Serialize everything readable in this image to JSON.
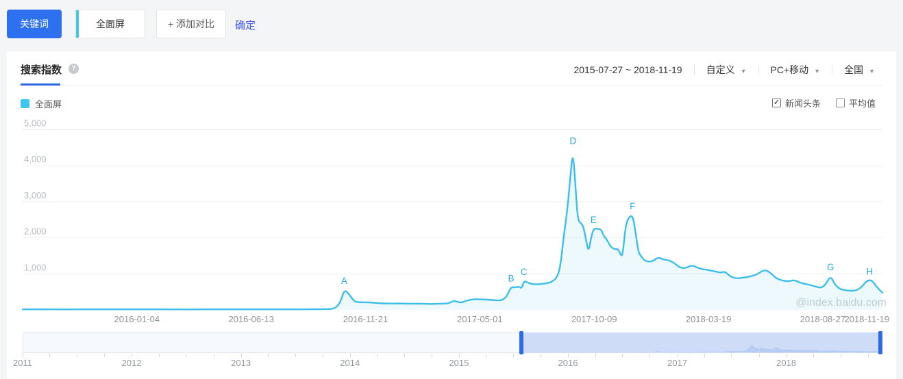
{
  "toolbar": {
    "keyword_label": "关键词",
    "keyword_value": "全面屏",
    "add_compare_label": "+ 添加对比",
    "confirm_label": "确定"
  },
  "panel": {
    "tab_title": "搜索指数",
    "date_range": "2015-07-27 ~ 2018-11-19",
    "range_mode": "自定义",
    "platform": "PC+移动",
    "region": "全国"
  },
  "legend": {
    "series_label": "全面屏",
    "series_color": "#3EC7F0",
    "news_toggle": "新闻头条",
    "news_checked": true,
    "average_toggle": "平均值",
    "average_checked": false
  },
  "icons": {
    "caret": "▼",
    "help": "?",
    "check": "✓"
  },
  "watermark": "@index.baidu.com",
  "colors": {
    "primary_blue": "#2D71F0",
    "accent_blue": "#2E6BE5",
    "cyan": "#3EC7F0",
    "line": "#3CBEEC",
    "marker": "#2EA8E0",
    "slider_selection": "#CEDCF8",
    "slider_mini": "#B7CCF2"
  },
  "chart_data": {
    "type": "area",
    "title": "搜索指数",
    "series_name": "全面屏",
    "x_range": [
      "2015-07-27",
      "2018-11-19"
    ],
    "ylim": [
      0,
      5000
    ],
    "grid": true,
    "y_ticks": [
      {
        "v": 1000,
        "label": "1,000"
      },
      {
        "v": 2000,
        "label": "2,000"
      },
      {
        "v": 3000,
        "label": "3,000"
      },
      {
        "v": 4000,
        "label": "4,000"
      },
      {
        "v": 5000,
        "label": "5,000"
      }
    ],
    "x_ticks": [
      "2016-01-04",
      "2016-06-13",
      "2016-11-21",
      "2017-05-01",
      "2017-10-09",
      "2018-03-19",
      "2018-08-27",
      "2018-11-19"
    ],
    "markers": [
      {
        "label": "A",
        "date": "2016-10-22",
        "value": 570
      },
      {
        "label": "B",
        "date": "2017-06-14",
        "value": 640
      },
      {
        "label": "C",
        "date": "2017-07-02",
        "value": 815
      },
      {
        "label": "D",
        "date": "2017-09-09",
        "value": 4450
      },
      {
        "label": "E",
        "date": "2017-10-08",
        "value": 2260
      },
      {
        "label": "F",
        "date": "2017-12-02",
        "value": 2640
      },
      {
        "label": "G",
        "date": "2018-09-07",
        "value": 950
      },
      {
        "label": "H",
        "date": "2018-11-01",
        "value": 830
      }
    ],
    "points": [
      [
        "2015-07-27",
        15
      ],
      [
        "2015-08-24",
        18
      ],
      [
        "2015-09-21",
        14
      ],
      [
        "2015-10-19",
        17
      ],
      [
        "2015-11-16",
        15
      ],
      [
        "2015-12-14",
        18
      ],
      [
        "2016-01-04",
        15
      ],
      [
        "2016-02-01",
        17
      ],
      [
        "2016-02-29",
        14
      ],
      [
        "2016-03-28",
        16
      ],
      [
        "2016-04-25",
        15
      ],
      [
        "2016-05-23",
        17
      ],
      [
        "2016-06-13",
        15
      ],
      [
        "2016-07-11",
        16
      ],
      [
        "2016-08-08",
        15
      ],
      [
        "2016-09-05",
        17
      ],
      [
        "2016-09-26",
        20
      ],
      [
        "2016-10-08",
        30
      ],
      [
        "2016-10-16",
        180
      ],
      [
        "2016-10-22",
        570
      ],
      [
        "2016-10-29",
        430
      ],
      [
        "2016-11-05",
        230
      ],
      [
        "2016-11-13",
        210
      ],
      [
        "2016-11-21",
        215
      ],
      [
        "2016-12-01",
        200
      ],
      [
        "2016-12-12",
        185
      ],
      [
        "2016-12-26",
        175
      ],
      [
        "2017-01-09",
        180
      ],
      [
        "2017-01-22",
        170
      ],
      [
        "2017-02-05",
        175
      ],
      [
        "2017-02-19",
        163
      ],
      [
        "2017-03-05",
        172
      ],
      [
        "2017-03-19",
        178
      ],
      [
        "2017-03-25",
        265
      ],
      [
        "2017-04-04",
        190
      ],
      [
        "2017-04-13",
        265
      ],
      [
        "2017-04-24",
        300
      ],
      [
        "2017-05-05",
        290
      ],
      [
        "2017-05-17",
        280
      ],
      [
        "2017-05-30",
        255
      ],
      [
        "2017-06-05",
        320
      ],
      [
        "2017-06-09",
        420
      ],
      [
        "2017-06-14",
        640
      ],
      [
        "2017-06-20",
        620
      ],
      [
        "2017-06-25",
        650
      ],
      [
        "2017-06-29",
        590
      ],
      [
        "2017-07-02",
        815
      ],
      [
        "2017-07-09",
        740
      ],
      [
        "2017-07-17",
        705
      ],
      [
        "2017-07-27",
        720
      ],
      [
        "2017-08-05",
        745
      ],
      [
        "2017-08-11",
        790
      ],
      [
        "2017-08-17",
        880
      ],
      [
        "2017-08-22",
        1150
      ],
      [
        "2017-08-27",
        2020
      ],
      [
        "2017-09-01",
        2750
      ],
      [
        "2017-09-05",
        3600
      ],
      [
        "2017-09-09",
        4450
      ],
      [
        "2017-09-13",
        3300
      ],
      [
        "2017-09-16",
        2490
      ],
      [
        "2017-09-21",
        2390
      ],
      [
        "2017-09-24",
        2300
      ],
      [
        "2017-09-28",
        1900
      ],
      [
        "2017-10-01",
        1615
      ],
      [
        "2017-10-04",
        1950
      ],
      [
        "2017-10-08",
        2260
      ],
      [
        "2017-10-14",
        2250
      ],
      [
        "2017-10-19",
        2230
      ],
      [
        "2017-10-22",
        2060
      ],
      [
        "2017-10-27",
        1950
      ],
      [
        "2017-11-01",
        1750
      ],
      [
        "2017-11-07",
        1680
      ],
      [
        "2017-11-12",
        1690
      ],
      [
        "2017-11-15",
        1530
      ],
      [
        "2017-11-18",
        1500
      ],
      [
        "2017-11-22",
        2300
      ],
      [
        "2017-11-26",
        2550
      ],
      [
        "2017-12-02",
        2640
      ],
      [
        "2017-12-06",
        2200
      ],
      [
        "2017-12-10",
        1610
      ],
      [
        "2017-12-15",
        1460
      ],
      [
        "2017-12-19",
        1370
      ],
      [
        "2017-12-26",
        1330
      ],
      [
        "2018-01-02",
        1380
      ],
      [
        "2018-01-07",
        1460
      ],
      [
        "2018-01-14",
        1400
      ],
      [
        "2018-01-22",
        1380
      ],
      [
        "2018-01-30",
        1300
      ],
      [
        "2018-02-06",
        1180
      ],
      [
        "2018-02-14",
        1150
      ],
      [
        "2018-02-24",
        1250
      ],
      [
        "2018-03-05",
        1150
      ],
      [
        "2018-03-18",
        1110
      ],
      [
        "2018-03-30",
        1060
      ],
      [
        "2018-04-05",
        1030
      ],
      [
        "2018-04-11",
        1070
      ],
      [
        "2018-04-19",
        920
      ],
      [
        "2018-04-28",
        870
      ],
      [
        "2018-05-08",
        900
      ],
      [
        "2018-05-18",
        930
      ],
      [
        "2018-05-27",
        990
      ],
      [
        "2018-06-03",
        1090
      ],
      [
        "2018-06-09",
        1100
      ],
      [
        "2018-06-16",
        1000
      ],
      [
        "2018-06-22",
        880
      ],
      [
        "2018-06-30",
        820
      ],
      [
        "2018-07-09",
        790
      ],
      [
        "2018-07-17",
        830
      ],
      [
        "2018-07-22",
        790
      ],
      [
        "2018-07-30",
        730
      ],
      [
        "2018-08-08",
        700
      ],
      [
        "2018-08-16",
        650
      ],
      [
        "2018-08-24",
        610
      ],
      [
        "2018-08-30",
        680
      ],
      [
        "2018-09-07",
        950
      ],
      [
        "2018-09-13",
        700
      ],
      [
        "2018-09-20",
        580
      ],
      [
        "2018-09-28",
        545
      ],
      [
        "2018-10-06",
        525
      ],
      [
        "2018-10-14",
        545
      ],
      [
        "2018-10-21",
        640
      ],
      [
        "2018-10-27",
        790
      ],
      [
        "2018-11-01",
        830
      ],
      [
        "2018-11-05",
        800
      ],
      [
        "2018-11-11",
        640
      ],
      [
        "2018-11-16",
        530
      ],
      [
        "2018-11-19",
        480
      ]
    ]
  },
  "slider": {
    "range": [
      "2011-01-01",
      "2018-11-19"
    ],
    "selection": [
      "2015-07-27",
      "2018-11-19"
    ],
    "year_labels": [
      "2011",
      "2012",
      "2013",
      "2014",
      "2015",
      "2016",
      "2017",
      "2018"
    ]
  }
}
